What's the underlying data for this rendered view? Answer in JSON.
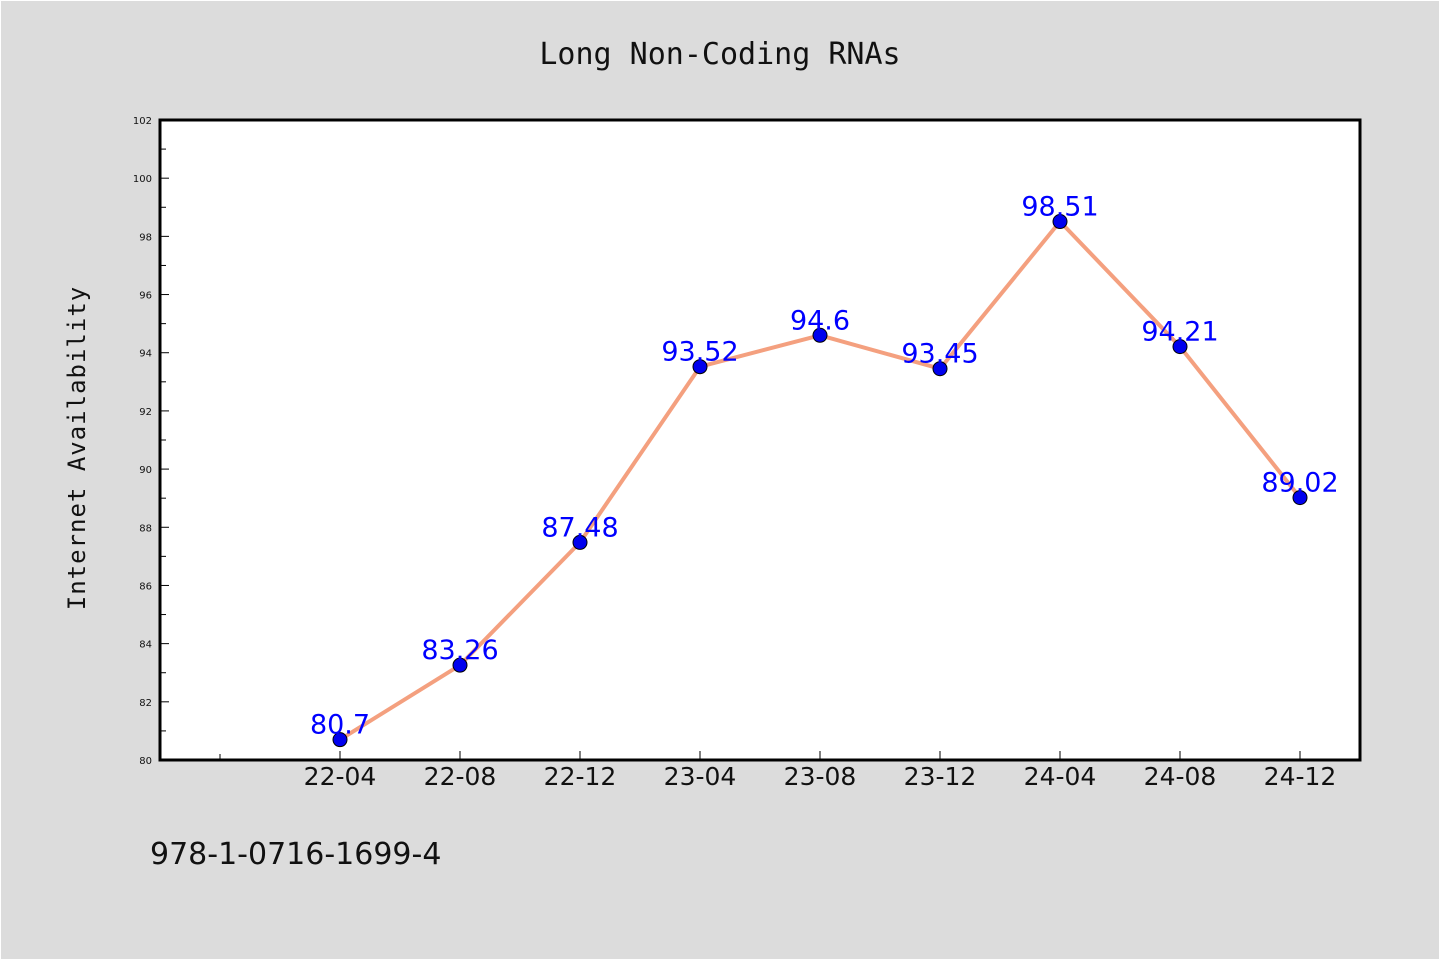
{
  "chart_data": {
    "type": "line",
    "title": "Long Non-Coding RNAs",
    "xlabel": "",
    "ylabel": "Internet Availability",
    "categories": [
      "22-04",
      "22-08",
      "22-12",
      "23-04",
      "23-08",
      "23-12",
      "24-04",
      "24-08",
      "24-12"
    ],
    "values": [
      80.7,
      83.26,
      87.48,
      93.52,
      94.6,
      93.45,
      98.51,
      94.21,
      89.02
    ],
    "value_labels": [
      "80.7",
      "83.26",
      "87.48",
      "93.52",
      "94.6",
      "93.45",
      "98.51",
      "94.21",
      "89.02"
    ],
    "ylim": [
      80,
      102
    ],
    "y_ticks": [
      80,
      82,
      84,
      86,
      88,
      90,
      92,
      94,
      96,
      98,
      100,
      102
    ],
    "y_tick_labels": [
      "80",
      "82",
      "84",
      "86",
      "88",
      "90",
      "92",
      "94",
      "96",
      "98",
      "100",
      "102"
    ],
    "grid": false,
    "legend": "none",
    "colors": {
      "line": "#f4a07f",
      "marker": "#0000ee",
      "label": "#0000ff",
      "plot_background": "#ffffff",
      "page_background": "#dcdcdc"
    }
  },
  "footer": {
    "code": "978-1-0716-1699-4"
  }
}
